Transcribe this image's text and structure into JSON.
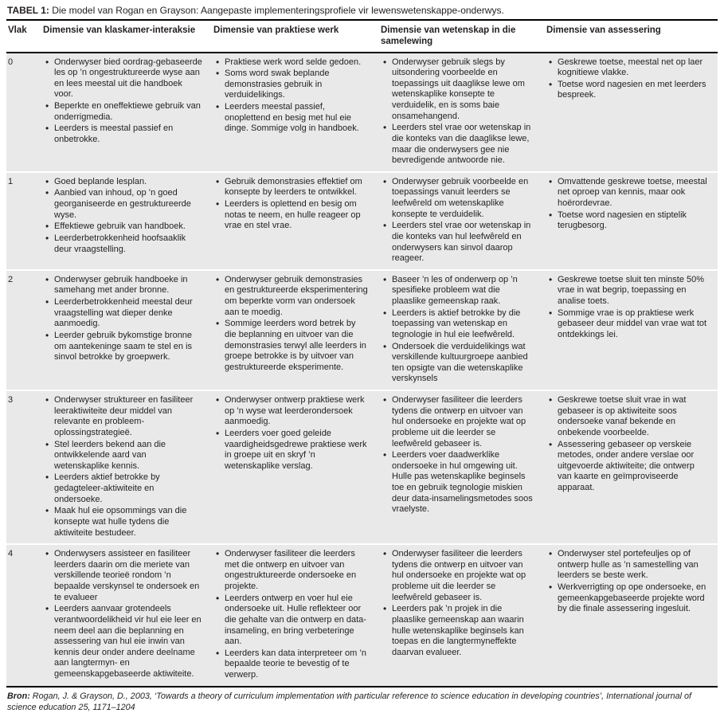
{
  "colors": {
    "row_shade": "#E9E9E9",
    "rule": "#000000",
    "text": "#231F20"
  },
  "table": {
    "title_label": "TABEL 1:",
    "title_text": "Die model van Rogan en Grayson: Aangepaste implementeringsprofiele vir lewenswetenskappe-onderwys.",
    "columns": [
      "Vlak",
      "Dimensie van klaskamer-interaksie",
      "Dimensie van praktiese werk",
      "Dimensie van wetenskap in die samelewing",
      "Dimensie van assessering"
    ],
    "rows": [
      {
        "vlak": "0",
        "klaskamer": [
          "Onderwyser bied oordrag-gebaseerde les op ’n ongestruktureerde wyse aan en lees meestal uit die handboek voor.",
          "Beperkte en oneffektiewe gebruik van onderrigmedia.",
          "Leerders is meestal passief en onbetrokke."
        ],
        "prakties": [
          "Praktiese werk word selde gedoen.",
          "Soms word swak beplande demonstrasies gebruik in verduidelikings.",
          "Leerders meestal passief, onoplettend en besig met hul eie dinge. Sommige volg in handboek."
        ],
        "wetenskap": [
          "Onderwyser gebruik slegs by uitsondering voorbeelde en toepassings uit daaglikse lewe om wetenskaplike konsepte te verduidelik, en is soms baie onsamehangend.",
          "Leerders stel vrae oor wetenskap in die konteks van die daaglikse lewe, maar die onderwysers gee nie bevredigende antwoorde nie."
        ],
        "assessering": [
          "Geskrewe toetse, meestal net op laer kognitiewe vlakke.",
          "Toetse word nagesien en met leerders bespreek."
        ]
      },
      {
        "vlak": "1",
        "klaskamer": [
          "Goed beplande lesplan.",
          "Aanbied van inhoud, op ’n goed georganiseerde en gestruktureerde wyse.",
          "Effektiewe gebruik van handboek.",
          "Leerderbetrokkenheid hoofsaaklik deur vraagstelling."
        ],
        "prakties": [
          "Gebruik demonstrasies effektief om konsepte by leerders te ontwikkel.",
          "Leerders is oplettend en besig om notas te neem, en hulle reageer op vrae en stel vrae."
        ],
        "wetenskap": [
          "Onderwyser gebruik voorbeelde en toepassings vanuit leerders se leefwêreld om wetenskaplike konsepte te verduidelik.",
          "Leerders stel vrae oor wetenskap in die konteks van hul leefwêreld en onderwysers kan sinvol daarop reageer."
        ],
        "assessering": [
          "Omvattende geskrewe toetse, meestal net oproep van kennis, maar ook hoërordevrae.",
          "Toetse word nagesien en stiptelik terugbesorg."
        ]
      },
      {
        "vlak": "2",
        "klaskamer": [
          "Onderwyser gebruik handboeke in samehang met ander bronne.",
          "Leerderbetrokkenheid meestal deur vraagstelling wat dieper denke aanmoedig.",
          "Leerder gebruik bykomstige bronne om aantekeninge saam te stel en is sinvol betrokke by groepwerk."
        ],
        "prakties": [
          "Onderwyser gebruik demonstrasies en gestruktureerde eksperimentering om beperkte vorm van ondersoek aan te moedig.",
          "Sommige leerders word betrek by die beplanning en uitvoer van die demonstrasies terwyl alle leerders in groepe betrokke is by uitvoer van gestruktureerde eksperimente."
        ],
        "wetenskap": [
          "Baseer ’n les of onderwerp op ’n spesifieke probleem wat die plaaslike gemeenskap raak.",
          "Leerders is aktief betrokke by die toepassing van wetenskap en tegnologie in hul eie leefwêreld.",
          "Ondersoek die verduidelikings wat verskillende kultuurgroepe aanbied ten opsigte van die wetenskaplike verskynsels"
        ],
        "assessering": [
          "Geskrewe toetse sluit ten minste 50% vrae in wat begrip, toepassing en analise toets.",
          "Sommige vrae is op praktiese werk gebaseer deur middel van vrae wat tot ontdekkings lei."
        ]
      },
      {
        "vlak": "3",
        "klaskamer": [
          "Onderwyser struktureer en fasiliteer leeraktiwiteite deur middel van relevante en probleem-oplossingstrategieë.",
          "Stel leerders bekend aan die ontwikkelende aard van wetenskaplike kennis.",
          "Leerders aktief betrokke by gedagteleer-aktiwiteite en ondersoeke.",
          "Maak hul eie opsommings van die konsepte wat hulle tydens die aktiwiteite bestudeer."
        ],
        "prakties": [
          "Onderwyser ontwerp praktiese werk op ’n wyse wat leerderondersoek aanmoedig.",
          "Leerders voer goed geleide vaardigheidsgedrewe praktiese werk in groepe uit en skryf ’n wetenskaplike verslag."
        ],
        "wetenskap": [
          "Onderwyser fasiliteer die leerders tydens die ontwerp en uitvoer van hul ondersoeke en projekte wat op probleme uit die leerder se leefwêreld gebaseer is.",
          "Leerders voer daadwerklike ondersoeke in hul omgewing uit. Hulle pas wetenskaplike beginsels toe en gebruik tegnologie miskien deur data-insamelingsmetodes soos vraelyste."
        ],
        "assessering": [
          "Geskrewe toetse sluit vrae in wat gebaseer is op aktiwiteite soos ondersoeke vanaf bekende en onbekende voorbeelde.",
          "Assessering gebaseer op verskeie metodes, onder andere verslae oor uitgevoerde aktiwiteite; die ontwerp van kaarte en geïmproviseerde apparaat."
        ]
      },
      {
        "vlak": "4",
        "klaskamer": [
          "Onderwysers assisteer en fasiliteer leerders daarin om die meriete van verskillende teorieë rondom ’n bepaalde verskynsel te ondersoek en te evalueer",
          "Leerders aanvaar grotendeels verantwoordelikheid vir hul eie leer en neem deel aan die beplanning en assessering van hul eie inwin van kennis deur onder andere deelname aan langtermyn- en gemeenskapgebaseerde aktiwiteite."
        ],
        "prakties": [
          "Onderwyser fasiliteer die leerders met die ontwerp en uitvoer van ongestruktureerde ondersoeke en projekte.",
          "Leerders ontwerp en voer hul eie ondersoeke uit. Hulle reflekteer oor die gehalte van die ontwerp en data-insameling, en bring verbeteringe aan.",
          "Leerders kan data interpreteer om ’n bepaalde teorie te bevestig of te verwerp."
        ],
        "wetenskap": [
          "Onderwyser fasiliteer die leerders tydens die ontwerp en uitvoer van hul ondersoeke en projekte wat op probleme uit die leerder se leefwêreld gebaseer is.",
          "Leerders pak ’n projek in die plaaslike gemeenskap aan waarin hulle wetenskaplike beginsels kan toepas en die langtermyneffekte daarvan evalueer."
        ],
        "assessering": [
          "Onderwyser stel portefeuljes op of ontwerp hulle as ’n samestelling van leerders se beste werk.",
          "Werkverrigting op ope ondersoeke, en gemeenkapgebaseerde projekte word by die finale assessering ingesluit."
        ]
      }
    ]
  },
  "footer": {
    "bron_label": "Bron:",
    "citation_prefix": " Rogan, J. & Grayson, D., 2003, ‘Towards a theory of curriculum implementation with particular reference to science education in developing countries’, ",
    "journal": "International journal of science education",
    "citation_suffix": " 25, 1171–1204"
  }
}
